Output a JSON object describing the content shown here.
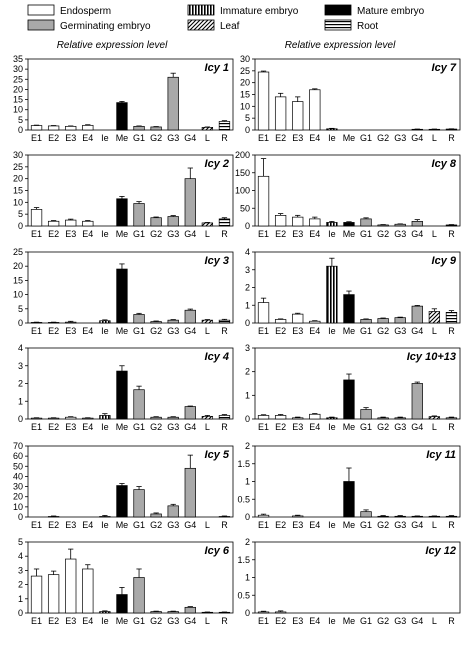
{
  "legend": [
    {
      "label": "Endosperm",
      "pattern": "white"
    },
    {
      "label": "Germinating embryo",
      "pattern": "gray"
    },
    {
      "label": "Immature embryo",
      "pattern": "vstripe"
    },
    {
      "label": "Leaf",
      "pattern": "diag"
    },
    {
      "label": "Mature embryo",
      "pattern": "black"
    },
    {
      "label": "Root",
      "pattern": "hstripe"
    }
  ],
  "columns": {
    "left_title": "Relative expression level",
    "right_title": "Relative expression level"
  },
  "chart_data": {
    "type": "bar",
    "categories": [
      "E1",
      "E2",
      "E3",
      "E4",
      "Ie",
      "Me",
      "G1",
      "G2",
      "G3",
      "G4",
      "L",
      "R"
    ],
    "category_tissue": [
      "endosperm",
      "endosperm",
      "endosperm",
      "endosperm",
      "immature",
      "mature",
      "germinating",
      "germinating",
      "germinating",
      "germinating",
      "leaf",
      "root"
    ],
    "panels": [
      {
        "title": "Icy 1",
        "ylim": [
          0,
          35
        ],
        "yticks": [
          0,
          5,
          10,
          15,
          20,
          25,
          30,
          35
        ],
        "values": [
          2.2,
          2.0,
          1.8,
          2.3,
          0,
          13.5,
          1.8,
          1.5,
          26,
          0,
          1.3,
          4.2
        ],
        "errors": [
          0.2,
          0.2,
          0.2,
          0.3,
          0,
          0.6,
          0.2,
          0.2,
          2.0,
          0,
          0.2,
          0.4
        ]
      },
      {
        "title": "Icy 7",
        "ylim": [
          0,
          30
        ],
        "yticks": [
          0,
          5,
          10,
          15,
          20,
          25,
          30
        ],
        "values": [
          24.5,
          14,
          12,
          17,
          0.5,
          0,
          0,
          0,
          0,
          0.3,
          0.3,
          0.4
        ],
        "errors": [
          0.4,
          1.5,
          2.0,
          0.4,
          0.2,
          0,
          0,
          0,
          0,
          0.1,
          0.1,
          0.1
        ]
      },
      {
        "title": "Icy 2",
        "ylim": [
          0,
          30
        ],
        "yticks": [
          0,
          5,
          10,
          15,
          20,
          25,
          30
        ],
        "values": [
          7,
          2,
          2.5,
          2,
          0,
          11.5,
          9.5,
          3.5,
          4,
          20,
          1.3,
          3
        ],
        "errors": [
          0.8,
          0.3,
          0.4,
          0.3,
          0,
          1.0,
          0.8,
          0.3,
          0.4,
          4.5,
          0.2,
          0.5
        ]
      },
      {
        "title": "Icy 8",
        "ylim": [
          0,
          200
        ],
        "yticks": [
          0,
          50,
          100,
          150,
          200
        ],
        "values": [
          140,
          30,
          25,
          20,
          10,
          10,
          20,
          3,
          5,
          13,
          0,
          3
        ],
        "errors": [
          50,
          5,
          5,
          5,
          3,
          2,
          3,
          1,
          1,
          5,
          0,
          1
        ]
      },
      {
        "title": "Icy 3",
        "ylim": [
          0,
          25
        ],
        "yticks": [
          0,
          5,
          10,
          15,
          20,
          25
        ],
        "values": [
          0.2,
          0.2,
          0.3,
          0,
          0.8,
          19,
          3,
          0.5,
          1,
          4.5,
          1,
          1
        ],
        "errors": [
          0.1,
          0.1,
          0.3,
          0,
          0.3,
          1.8,
          0.4,
          0.2,
          0.2,
          0.4,
          0.2,
          0.3
        ]
      },
      {
        "title": "Icy 9",
        "ylim": [
          0,
          4
        ],
        "yticks": [
          0,
          1,
          2,
          3,
          4
        ],
        "values": [
          1.15,
          0.2,
          0.5,
          0.1,
          3.2,
          1.6,
          0.2,
          0.25,
          0.3,
          0.95,
          0.65,
          0.6
        ],
        "errors": [
          0.25,
          0.03,
          0.05,
          0.03,
          0.45,
          0.2,
          0.03,
          0.03,
          0.03,
          0.04,
          0.15,
          0.1
        ]
      },
      {
        "title": "Icy 4",
        "ylim": [
          0,
          4
        ],
        "yticks": [
          0,
          1,
          2,
          3,
          4
        ],
        "values": [
          0.05,
          0.05,
          0.1,
          0.05,
          0.2,
          2.7,
          1.65,
          0.1,
          0.1,
          0.7,
          0.15,
          0.2
        ],
        "errors": [
          0.02,
          0.02,
          0.03,
          0.02,
          0.1,
          0.3,
          0.2,
          0.03,
          0.03,
          0.03,
          0.05,
          0.05
        ]
      },
      {
        "title": "Icy 10+13",
        "ylim": [
          0,
          3
        ],
        "yticks": [
          0,
          1,
          2,
          3
        ],
        "values": [
          0.15,
          0.15,
          0.05,
          0.2,
          0.05,
          1.65,
          0.4,
          0.05,
          0.05,
          1.5,
          0.1,
          0.05
        ],
        "errors": [
          0.03,
          0.04,
          0.03,
          0.03,
          0.03,
          0.25,
          0.08,
          0.03,
          0.03,
          0.06,
          0.03,
          0.03
        ]
      },
      {
        "title": "Icy 5",
        "ylim": [
          0,
          70
        ],
        "yticks": [
          0,
          10,
          20,
          30,
          40,
          50,
          60,
          70
        ],
        "values": [
          0,
          0.5,
          0,
          0,
          0.5,
          31,
          27,
          3,
          11,
          48,
          0,
          0.5
        ],
        "errors": [
          0,
          0.5,
          0,
          0,
          1,
          2,
          3,
          1,
          1.5,
          13,
          0,
          0.5
        ]
      },
      {
        "title": "Icy 11",
        "ylim": [
          0,
          2
        ],
        "yticks": [
          0,
          0.5,
          1,
          1.5,
          2
        ],
        "values": [
          0.05,
          0,
          0.03,
          0,
          0,
          1.0,
          0.15,
          0.02,
          0.02,
          0.02,
          0.02,
          0.02
        ],
        "errors": [
          0.03,
          0,
          0.02,
          0,
          0,
          0.38,
          0.05,
          0.02,
          0.02,
          0.01,
          0.01,
          0.02
        ]
      },
      {
        "title": "Icy 6",
        "ylim": [
          0,
          5
        ],
        "yticks": [
          0,
          1,
          2,
          3,
          4,
          5
        ],
        "values": [
          2.6,
          2.7,
          3.8,
          3.1,
          0.1,
          1.3,
          2.5,
          0.1,
          0.1,
          0.4,
          0.05,
          0.05
        ],
        "errors": [
          0.5,
          0.25,
          0.7,
          0.3,
          0.05,
          0.5,
          0.6,
          0.03,
          0.03,
          0.05,
          0.02,
          0.02
        ]
      },
      {
        "title": "Icy 12",
        "ylim": [
          0,
          2
        ],
        "yticks": [
          0,
          0.5,
          1,
          1.5,
          2
        ],
        "values": [
          0.03,
          0.03,
          0,
          0,
          0,
          0,
          0,
          0,
          0,
          0,
          0,
          0
        ],
        "errors": [
          0.02,
          0.03,
          0,
          0,
          0,
          0,
          0,
          0,
          0,
          0,
          0,
          0
        ]
      }
    ]
  }
}
